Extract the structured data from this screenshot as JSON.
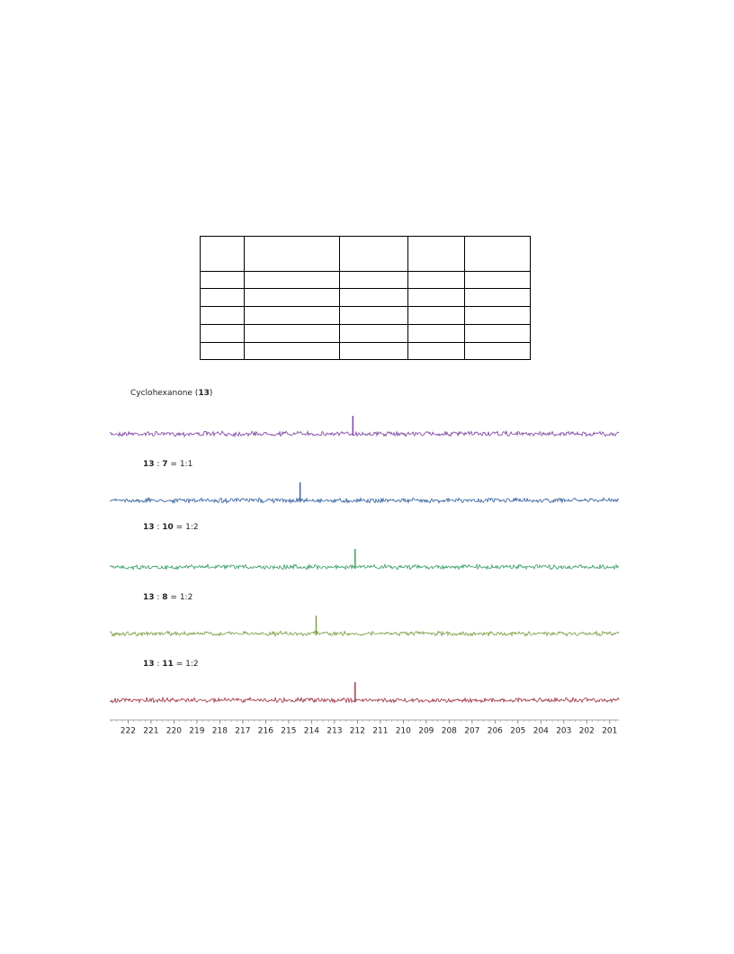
{
  "spectra": {
    "xlim": [
      222.8,
      200.6
    ],
    "xticks": [
      222,
      221,
      220,
      219,
      218,
      217,
      216,
      215,
      214,
      213,
      212,
      211,
      210,
      209,
      208,
      207,
      206,
      205,
      204,
      203,
      202,
      201
    ],
    "series": [
      {
        "label_parts": [
          "Cyclohexanone (",
          "13",
          ")"
        ],
        "bold": [
          false,
          true,
          false
        ],
        "color": "#7b3f9e",
        "peak_ppm": 212.2
      },
      {
        "label_parts": [
          "13",
          " : ",
          "7",
          " = 1:1"
        ],
        "bold": [
          true,
          false,
          true,
          false
        ],
        "color": "#2f5d9b",
        "peak_ppm": 214.5
      },
      {
        "label_parts": [
          "13",
          " : ",
          "10",
          " = 1:2"
        ],
        "bold": [
          true,
          false,
          true,
          false
        ],
        "color": "#2f9a5c",
        "peak_ppm": 212.1
      },
      {
        "label_parts": [
          "13",
          " : ",
          "8",
          " = 1:2"
        ],
        "bold": [
          true,
          false,
          true,
          false
        ],
        "color": "#7b9a40",
        "peak_ppm": 213.8
      },
      {
        "label_parts": [
          "13",
          " : ",
          "11",
          " = 1:2"
        ],
        "bold": [
          true,
          false,
          true,
          false
        ],
        "color": "#9b2f3b",
        "peak_ppm": 212.1
      }
    ]
  }
}
